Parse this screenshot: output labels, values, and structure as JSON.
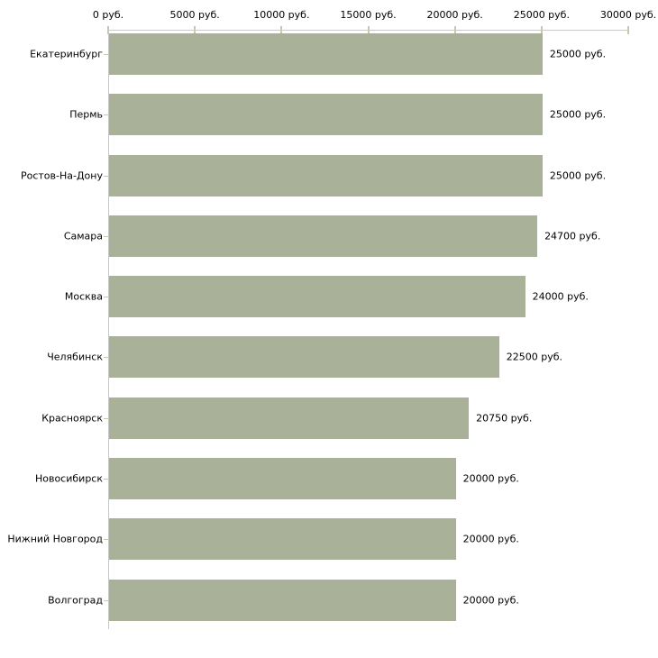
{
  "chart_data": {
    "type": "bar",
    "orientation": "horizontal",
    "title": "",
    "categories": [
      "Екатеринбург",
      "Пермь",
      "Ростов-На-Дону",
      "Самара",
      "Москва",
      "Челябинск",
      "Красноярск",
      "Новосибирск",
      "Нижний Новгород",
      "Волгоград"
    ],
    "values": [
      25000,
      25000,
      25000,
      24700,
      24000,
      22500,
      20750,
      20000,
      20000,
      20000
    ],
    "value_labels": [
      "25000 руб.",
      "25000 руб.",
      "25000 руб.",
      "24700 руб.",
      "24000 руб.",
      "22500 руб.",
      "20750 руб.",
      "20000 руб.",
      "20000 руб.",
      "20000 руб."
    ],
    "x_axis": {
      "position": "top",
      "min": 0,
      "max": 30000,
      "ticks": [
        0,
        5000,
        10000,
        15000,
        20000,
        25000,
        30000
      ],
      "tick_labels": [
        "0 руб.",
        "5000 руб.",
        "10000 руб.",
        "15000 руб.",
        "20000 руб.",
        "25000 руб.",
        "30000 руб."
      ]
    },
    "grid": false,
    "legend": null,
    "colors": {
      "bar": "#a9b198",
      "axis_line": "#c8c8c8",
      "tick": "#c9c9a4",
      "text": "#000000",
      "background": "#ffffff"
    }
  }
}
